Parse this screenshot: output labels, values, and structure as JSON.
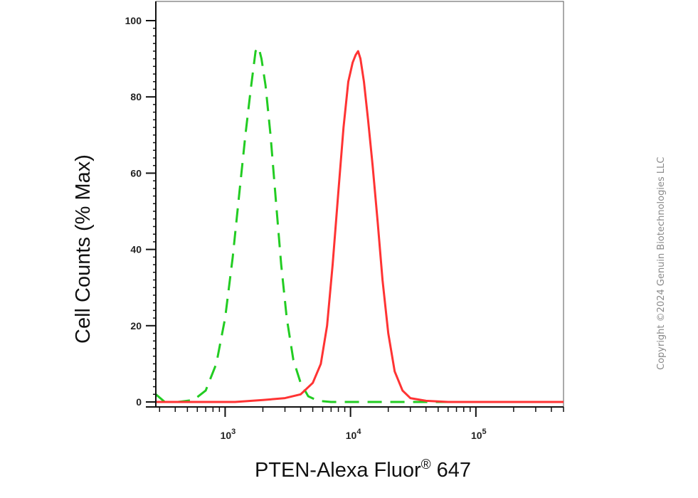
{
  "chart_data": {
    "type": "line",
    "title": "",
    "xlabel": "PTEN-Alexa Fluor",
    "xlabel_sup": "®",
    "xlabel_suffix": " 647",
    "ylabel": "Cell Counts (% Max)",
    "x_scale": "log",
    "xlim": [
      280,
      500000
    ],
    "ylim": [
      0,
      105
    ],
    "x_ticks": [
      {
        "value": 1000,
        "base": "10",
        "exp": "3"
      },
      {
        "value": 10000,
        "base": "10",
        "exp": "4"
      },
      {
        "value": 100000,
        "base": "10",
        "exp": "5"
      }
    ],
    "y_ticks": [
      0,
      20,
      40,
      60,
      80,
      100
    ],
    "grid": false,
    "legend": "none",
    "series": [
      {
        "color": "#22cc22",
        "dash": "dashed",
        "points": [
          [
            280,
            2
          ],
          [
            330,
            0
          ],
          [
            420,
            0
          ],
          [
            560,
            0.5
          ],
          [
            700,
            3
          ],
          [
            850,
            10
          ],
          [
            1000,
            22
          ],
          [
            1150,
            38
          ],
          [
            1300,
            55
          ],
          [
            1450,
            70
          ],
          [
            1600,
            82
          ],
          [
            1750,
            92
          ],
          [
            1850,
            93
          ],
          [
            1950,
            90
          ],
          [
            2100,
            83
          ],
          [
            2300,
            70
          ],
          [
            2550,
            52
          ],
          [
            2800,
            36
          ],
          [
            3100,
            22
          ],
          [
            3500,
            11
          ],
          [
            4000,
            5
          ],
          [
            4600,
            1.5
          ],
          [
            5500,
            0.3
          ],
          [
            7000,
            0
          ],
          [
            20000,
            0
          ],
          [
            500000,
            0
          ]
        ]
      },
      {
        "color": "#ff3333",
        "dash": "solid",
        "points": [
          [
            280,
            0
          ],
          [
            1200,
            0
          ],
          [
            2000,
            0.5
          ],
          [
            3000,
            1
          ],
          [
            4000,
            2
          ],
          [
            5000,
            5
          ],
          [
            5800,
            10
          ],
          [
            6500,
            20
          ],
          [
            7200,
            36
          ],
          [
            8000,
            55
          ],
          [
            8800,
            72
          ],
          [
            9600,
            84
          ],
          [
            10400,
            89
          ],
          [
            11000,
            91
          ],
          [
            11500,
            92
          ],
          [
            12000,
            90
          ],
          [
            12800,
            84
          ],
          [
            13800,
            74
          ],
          [
            15000,
            62
          ],
          [
            16500,
            47
          ],
          [
            18000,
            32
          ],
          [
            20000,
            18
          ],
          [
            22500,
            8
          ],
          [
            26000,
            3
          ],
          [
            30000,
            1
          ],
          [
            40000,
            0.3
          ],
          [
            60000,
            0
          ],
          [
            500000,
            0
          ]
        ]
      }
    ]
  },
  "copyright": "Copyright ©2024 Genuin Biotechnologies LLC"
}
